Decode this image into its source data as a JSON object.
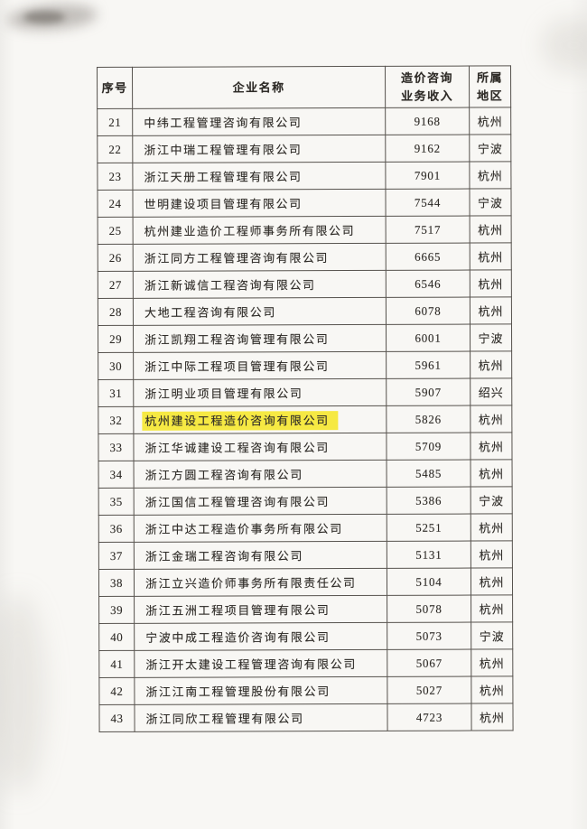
{
  "page": {
    "type": "scanned-document",
    "background": "#f8f7f4"
  },
  "colors": {
    "highlight": "#f6e943",
    "border": "#56524d",
    "text": "#2f2c28"
  },
  "table": {
    "headers": [
      {
        "key": "no",
        "lines": [
          "序号"
        ]
      },
      {
        "key": "name",
        "lines": [
          "企业名称"
        ]
      },
      {
        "key": "income",
        "lines": [
          "造价咨询",
          "业务收入"
        ]
      },
      {
        "key": "region",
        "lines": [
          "所属",
          "地区"
        ]
      }
    ],
    "rows": [
      {
        "no": "21",
        "name": "中纬工程管理咨询有限公司",
        "income": "9168",
        "region": "杭州",
        "highlighted": false
      },
      {
        "no": "22",
        "name": "浙江中瑞工程管理有限公司",
        "income": "9162",
        "region": "宁波",
        "highlighted": false
      },
      {
        "no": "23",
        "name": "浙江天册工程管理有限公司",
        "income": "7901",
        "region": "杭州",
        "highlighted": false
      },
      {
        "no": "24",
        "name": "世明建设项目管理有限公司",
        "income": "7544",
        "region": "宁波",
        "highlighted": false
      },
      {
        "no": "25",
        "name": "杭州建业造价工程师事务所有限公司",
        "income": "7517",
        "region": "杭州",
        "highlighted": false
      },
      {
        "no": "26",
        "name": "浙江同方工程管理咨询有限公司",
        "income": "6665",
        "region": "杭州",
        "highlighted": false
      },
      {
        "no": "27",
        "name": "浙江新诚信工程咨询有限公司",
        "income": "6546",
        "region": "杭州",
        "highlighted": false
      },
      {
        "no": "28",
        "name": "大地工程咨询有限公司",
        "income": "6078",
        "region": "杭州",
        "highlighted": false
      },
      {
        "no": "29",
        "name": "浙江凯翔工程咨询管理有限公司",
        "income": "6001",
        "region": "宁波",
        "highlighted": false
      },
      {
        "no": "30",
        "name": "浙江中际工程项目管理有限公司",
        "income": "5961",
        "region": "杭州",
        "highlighted": false
      },
      {
        "no": "31",
        "name": "浙江明业项目管理有限公司",
        "income": "5907",
        "region": "绍兴",
        "highlighted": false
      },
      {
        "no": "32",
        "name": "杭州建设工程造价咨询有限公司",
        "income": "5826",
        "region": "杭州",
        "highlighted": true
      },
      {
        "no": "33",
        "name": "浙江华诚建设工程咨询有限公司",
        "income": "5709",
        "region": "杭州",
        "highlighted": false
      },
      {
        "no": "34",
        "name": "浙江方圆工程咨询有限公司",
        "income": "5485",
        "region": "杭州",
        "highlighted": false
      },
      {
        "no": "35",
        "name": "浙江国信工程管理咨询有限公司",
        "income": "5386",
        "region": "宁波",
        "highlighted": false
      },
      {
        "no": "36",
        "name": "浙江中达工程造价事务所有限公司",
        "income": "5251",
        "region": "杭州",
        "highlighted": false
      },
      {
        "no": "37",
        "name": "浙江金瑞工程咨询有限公司",
        "income": "5131",
        "region": "杭州",
        "highlighted": false
      },
      {
        "no": "38",
        "name": "浙江立兴造价师事务所有限责任公司",
        "income": "5104",
        "region": "杭州",
        "highlighted": false
      },
      {
        "no": "39",
        "name": "浙江五洲工程项目管理有限公司",
        "income": "5078",
        "region": "杭州",
        "highlighted": false
      },
      {
        "no": "40",
        "name": "宁波中成工程造价咨询有限公司",
        "income": "5073",
        "region": "宁波",
        "highlighted": false
      },
      {
        "no": "41",
        "name": "浙江开太建设工程管理咨询有限公司",
        "income": "5067",
        "region": "杭州",
        "highlighted": false
      },
      {
        "no": "42",
        "name": "浙江江南工程管理股份有限公司",
        "income": "5027",
        "region": "杭州",
        "highlighted": false
      },
      {
        "no": "43",
        "name": "浙江同欣工程管理有限公司",
        "income": "4723",
        "region": "杭州",
        "highlighted": false
      }
    ]
  }
}
